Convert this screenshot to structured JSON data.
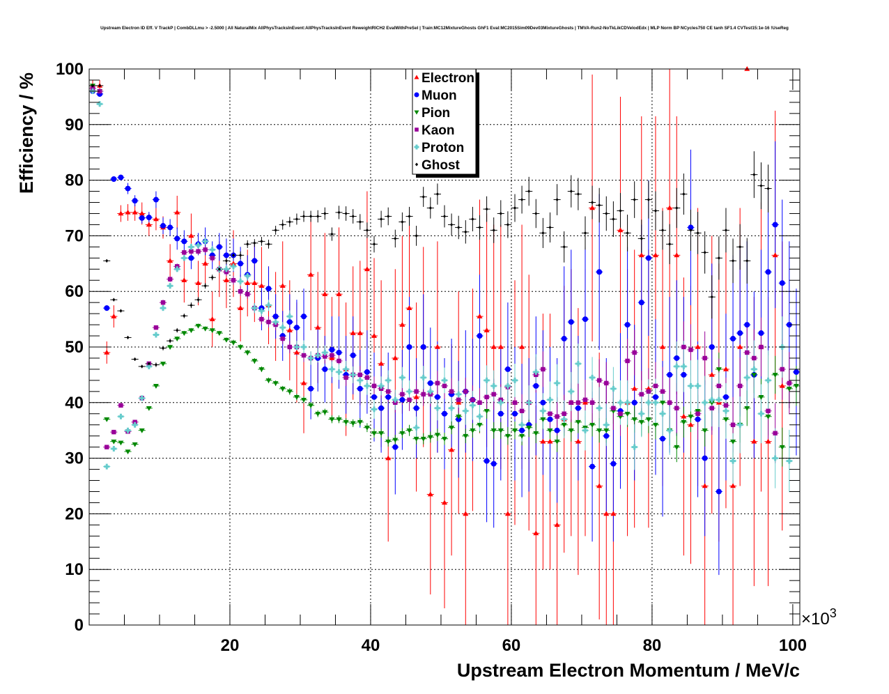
{
  "chart_data": {
    "type": "scatter",
    "title": "Upstream Electron ID Eff. V TrackP | CombDLLmu > -2.5000 | All NaturalMix AllPhysTracksInEvent:AllPhysTracksInEvent ReweightRICH2 EvalWithPreSel | Train:MC12MixtureGhosts GhF1 Eval:MC2015Sim09Dev03MixtureGhosts | TMVA-Run2-NoTkLikCDVelodEdx | MLP Norm BP NCycles750 CE tanh SF1.4 CVTest15:1e-16 !UseReg",
    "xlabel": "Upstream Electron Momentum / MeV/c",
    "ylabel": "Efficiency / %",
    "x_multiplier": "×10",
    "x_multiplier_exp": "3",
    "xlim": [
      0,
      101
    ],
    "ylim": [
      0,
      100
    ],
    "xticks": [
      "20",
      "40",
      "60",
      "80",
      "100"
    ],
    "yticks": [
      "0",
      "10",
      "20",
      "30",
      "40",
      "50",
      "60",
      "70",
      "80",
      "90",
      "100"
    ],
    "grid": true,
    "legend_position": "top-center",
    "x_start": 0.5,
    "bin_width": 1,
    "series": [
      {
        "name": "Electron",
        "color": "#ff0000",
        "marker": "triangle-up",
        "values": [
          97,
          97,
          49,
          55.5,
          74,
          74.2,
          74.2,
          74,
          72,
          73,
          71.5,
          65.5,
          74.2,
          62,
          70,
          61.5,
          65,
          55,
          64,
          62,
          65,
          57,
          61.5,
          61.5,
          61,
          57.5,
          55.5,
          61,
          53,
          49,
          43.5,
          63,
          53.5,
          59.5,
          48,
          59.5,
          46,
          52.5,
          52.5,
          64,
          52,
          47,
          30,
          48,
          54,
          57,
          41,
          50,
          23.5,
          50,
          22,
          31.5,
          40,
          20,
          40.5,
          55.5,
          53,
          50,
          50,
          20,
          40,
          50,
          40,
          16.5,
          33,
          33,
          18,
          37,
          40,
          33,
          40,
          75,
          25,
          20,
          20,
          71,
          40,
          42.5,
          66.5,
          42.5,
          66.5,
          50,
          75,
          66.5,
          37.5,
          36,
          50,
          25,
          45,
          40,
          46,
          25,
          50,
          100,
          33,
          50,
          33,
          66.5,
          43
        ],
        "err": [
          1,
          1,
          2,
          2,
          1.5,
          1.5,
          1.5,
          2,
          2,
          2,
          2,
          3,
          3,
          4,
          4,
          4,
          4,
          5,
          5,
          5,
          6,
          6,
          6,
          7,
          7,
          7,
          8,
          8,
          9,
          9,
          9,
          10,
          10,
          11,
          11,
          12,
          12,
          12,
          13,
          14,
          14,
          15,
          15,
          16,
          16,
          17,
          17,
          18,
          18,
          19,
          19,
          19,
          20,
          20,
          20,
          21,
          21,
          22,
          22,
          22,
          22,
          22,
          23,
          23,
          23,
          23,
          23,
          24,
          24,
          24,
          24,
          24,
          24,
          24,
          24,
          24,
          24,
          25,
          25,
          25,
          25,
          25,
          25,
          25,
          25,
          25,
          25,
          25,
          25,
          25,
          25,
          25,
          25,
          0,
          26,
          26,
          26,
          26,
          26
        ]
      },
      {
        "name": "Muon",
        "color": "#0000ff",
        "marker": "circle",
        "values": [
          96,
          95.5,
          57,
          80.2,
          80.5,
          78.5,
          76.3,
          73.2,
          73.3,
          76.5,
          71.8,
          71.5,
          69.5,
          69,
          66,
          68.5,
          69,
          66.5,
          68,
          66.5,
          66.5,
          65,
          63,
          65.5,
          57,
          60.5,
          55.5,
          52,
          54.5,
          53.5,
          55.5,
          42.5,
          48,
          46,
          49.5,
          49,
          45,
          48.5,
          42.5,
          45.5,
          41,
          39,
          41,
          32,
          40.5,
          50,
          39,
          50,
          43.5,
          41,
          38,
          41.5,
          37,
          42,
          40.5,
          52,
          29.5,
          29,
          38,
          46,
          38,
          35,
          36,
          43,
          40,
          37,
          35,
          51.5,
          54.5,
          39,
          55,
          28.5,
          63.5,
          34,
          29,
          38.5,
          54,
          40,
          58,
          66,
          41,
          33.5,
          45,
          48,
          45,
          71.5,
          37,
          30,
          50,
          24,
          41,
          51.5,
          52.5,
          54,
          45,
          52.5,
          63.5,
          72,
          61.5,
          54,
          45.5
        ],
        "err": [
          0.5,
          0.5,
          0.5,
          0.5,
          0.5,
          1,
          1,
          1,
          1,
          1.5,
          1.5,
          1.5,
          2,
          2,
          2,
          2,
          2.5,
          2.5,
          2.5,
          3,
          3,
          3,
          3.5,
          3.5,
          4,
          4,
          4,
          4.5,
          5,
          5,
          5,
          5.5,
          6,
          6,
          6,
          6.5,
          7,
          7,
          7,
          7.5,
          8,
          8,
          8,
          8.5,
          9,
          9,
          9,
          9.5,
          10,
          10,
          10,
          10,
          10.5,
          11,
          11,
          11,
          11,
          11.5,
          12,
          12,
          12,
          12,
          12,
          12.5,
          13,
          13,
          13,
          13,
          13,
          13,
          13,
          13.5,
          14,
          14,
          14,
          14,
          14,
          14,
          14,
          14,
          14,
          14,
          14,
          14,
          14,
          14,
          14,
          14,
          15,
          15,
          15,
          15,
          15,
          15,
          15,
          15,
          15,
          15,
          15,
          15,
          15
        ]
      },
      {
        "name": "Pion",
        "color": "#008800",
        "marker": "triangle-down",
        "values": [
          97,
          96,
          37,
          33,
          32.8,
          31.2,
          32.5,
          35,
          39,
          43,
          47,
          50,
          51.5,
          52.5,
          53,
          53.8,
          53.3,
          53,
          52.5,
          51.3,
          50.8,
          50,
          49,
          47.5,
          46,
          44,
          43.5,
          42.5,
          42,
          41,
          40.5,
          39.5,
          38,
          38.3,
          37,
          37,
          36.5,
          36.3,
          36.5,
          35.5,
          34.5,
          34.5,
          33,
          33.3,
          34.5,
          35,
          33.5,
          33.5,
          33.8,
          34.2,
          33.5,
          35.5,
          37.5,
          34,
          35,
          36,
          38.5,
          35,
          35,
          34,
          35,
          34,
          35.5,
          34.5,
          37,
          35,
          33,
          36,
          35,
          36.5,
          35.5,
          36,
          35,
          35,
          38.5,
          37.5,
          38,
          37,
          36.5,
          37,
          36,
          40,
          35,
          32,
          36.5,
          37.5,
          38.5,
          35,
          40,
          46,
          37,
          33,
          36,
          39,
          45,
          41,
          37.5,
          45,
          32,
          42.5,
          43
        ],
        "err": [
          0.3,
          0.3,
          0.3,
          0.3,
          0.3,
          0.3,
          0.3,
          0.3,
          0.3,
          0.3,
          0.3,
          0.4,
          0.4,
          0.4,
          0.4,
          0.4,
          0.4,
          0.4,
          0.4,
          0.4,
          0.5,
          0.5,
          0.5,
          0.5,
          0.5,
          0.5,
          0.5,
          0.5,
          0.6,
          0.6,
          0.6,
          0.6,
          0.6,
          0.6,
          0.7,
          0.7,
          0.7,
          0.7,
          0.7,
          0.8,
          0.8,
          0.8,
          0.9,
          0.9,
          0.9,
          1,
          1,
          1,
          1,
          1.1,
          1.1,
          1.2,
          1.2,
          1.3,
          1.3,
          1.4,
          1.4,
          1.5,
          1.5,
          1.6,
          1.6,
          1.7,
          1.7,
          1.8,
          1.8,
          1.9,
          1.9,
          2,
          2,
          2,
          2.1,
          2.1,
          2.2,
          2.2,
          2.3,
          2.3,
          2.4,
          2.4,
          2.5,
          2.5,
          2.6,
          2.6,
          2.7,
          2.7,
          2.8,
          2.8,
          2.9,
          2.9,
          3,
          3,
          3.1,
          3.1,
          3.2,
          3.2,
          3.3,
          3.3,
          3.4,
          3.4,
          3.5,
          3.5,
          3.6
        ]
      },
      {
        "name": "Kaon",
        "color": "#990099",
        "marker": "square",
        "values": [
          96.5,
          96,
          32,
          34.7,
          39.5,
          34.8,
          36.5,
          40.8,
          47,
          53.5,
          58,
          62.2,
          64.5,
          67,
          67.2,
          67.2,
          67.5,
          66,
          64,
          63.5,
          62,
          60,
          59.5,
          57,
          55,
          54.5,
          54,
          51.5,
          50,
          50,
          48.5,
          48,
          48.5,
          48.3,
          48.5,
          47.5,
          44.5,
          45,
          45,
          44.5,
          43,
          42.5,
          42,
          40,
          41.5,
          40.5,
          42,
          41.5,
          41.5,
          43.5,
          43,
          42,
          40.5,
          42,
          40.5,
          40,
          41,
          41.5,
          40.5,
          42.8,
          40,
          38.5,
          40,
          45,
          46,
          38,
          37.5,
          38,
          40,
          40,
          40.5,
          40,
          44,
          43.5,
          39,
          38,
          47.5,
          49,
          41.5,
          42,
          43,
          42,
          40,
          39,
          50,
          49.5,
          38,
          48,
          39,
          43,
          39.5,
          36,
          43,
          49,
          48,
          50,
          38.5,
          34.5,
          46,
          43.5
        ],
        "err": [
          0.4,
          0.4,
          0.4,
          0.4,
          0.4,
          0.4,
          0.4,
          0.4,
          0.4,
          0.4,
          0.5,
          0.5,
          0.5,
          0.5,
          0.6,
          0.6,
          0.6,
          0.7,
          0.7,
          0.7,
          0.8,
          0.8,
          0.8,
          0.9,
          0.9,
          1,
          1,
          1,
          1.1,
          1.1,
          1.2,
          1.2,
          1.3,
          1.3,
          1.4,
          1.4,
          1.5,
          1.5,
          1.6,
          1.6,
          1.7,
          1.7,
          1.8,
          1.8,
          1.9,
          2,
          2,
          2.1,
          2.2,
          2.2,
          2.3,
          2.4,
          2.4,
          2.5,
          2.6,
          2.6,
          2.7,
          2.8,
          2.8,
          2.9,
          3,
          3,
          3.1,
          3.2,
          3.2,
          3.3,
          3.4,
          3.4,
          3.5,
          3.6,
          3.6,
          3.7,
          3.8,
          3.8,
          3.9,
          4,
          4,
          4.1,
          4.2,
          4.2,
          4.3,
          4.4,
          4.4,
          4.5,
          4.6,
          4.6,
          4.7,
          4.8,
          4.8,
          4.9,
          5,
          5,
          5.1,
          5.2,
          5.2,
          5.3,
          5.4,
          5.4,
          5.5,
          5.6
        ]
      },
      {
        "name": "Proton",
        "color": "#66cccc",
        "marker": "cross",
        "values": [
          96,
          93.7,
          28.5,
          31.7,
          37.5,
          35,
          36,
          40.8,
          46.5,
          52.2,
          57,
          61,
          64,
          66,
          68,
          68.3,
          69,
          67.5,
          64,
          64,
          64.5,
          61.8,
          62.8,
          57,
          56.5,
          57.5,
          54.5,
          53.5,
          55.5,
          50,
          50,
          48,
          48.5,
          49,
          46,
          45.5,
          46,
          45,
          44,
          43,
          38.8,
          43,
          44,
          40.5,
          44.5,
          42,
          35.5,
          44.5,
          42,
          39,
          44,
          39,
          41.5,
          38.5,
          39.5,
          37.5,
          44,
          43,
          40,
          43,
          44,
          36,
          40,
          45.5,
          38.5,
          40.5,
          43.5,
          37,
          42,
          47,
          35,
          44.5,
          39,
          36,
          42.5,
          40,
          40,
          32,
          38,
          40,
          40,
          38,
          35,
          46.5,
          46.5,
          43,
          43,
          40,
          40.5,
          40.5,
          38.5,
          29.5,
          36,
          44.5,
          46,
          38,
          44,
          30,
          50,
          29.5
        ],
        "err": [
          0.4,
          0.4,
          0.4,
          0.4,
          0.4,
          0.4,
          0.4,
          0.4,
          0.4,
          0.4,
          0.5,
          0.5,
          0.5,
          0.5,
          0.6,
          0.6,
          0.6,
          0.7,
          0.7,
          0.7,
          0.8,
          0.8,
          0.8,
          0.9,
          0.9,
          1,
          1,
          1,
          1.1,
          1.1,
          1.2,
          1.2,
          1.3,
          1.3,
          1.4,
          1.4,
          1.5,
          1.5,
          1.6,
          1.6,
          1.7,
          1.7,
          1.8,
          1.8,
          1.9,
          2,
          2,
          2.1,
          2.2,
          2.2,
          2.3,
          2.4,
          2.4,
          2.5,
          2.6,
          2.6,
          2.7,
          2.8,
          2.8,
          2.9,
          3,
          3,
          3.1,
          3.2,
          3.2,
          3.3,
          3.4,
          3.4,
          3.5,
          3.6,
          3.6,
          3.7,
          3.8,
          3.8,
          3.9,
          4,
          4,
          4.1,
          4.2,
          4.2,
          4.3,
          4.4,
          4.4,
          4.5,
          4.6,
          4.6,
          4.7,
          4.8,
          4.8,
          4.9,
          5,
          5,
          5.1,
          5.2,
          5.2,
          5.3,
          5.4,
          5.4,
          5.5,
          5.6
        ]
      },
      {
        "name": "Ghost",
        "color": "#000000",
        "marker": "diamond",
        "values": [
          97,
          97,
          65.5,
          58.5,
          56.5,
          51.7,
          47.8,
          46.5,
          47,
          46.8,
          49.8,
          51.1,
          53,
          55.6,
          57.5,
          58.5,
          61,
          62.5,
          64,
          65.5,
          66.5,
          66.5,
          68.5,
          68.7,
          69,
          68.5,
          71,
          72,
          72.5,
          73,
          73.5,
          73.5,
          73.5,
          74,
          70.3,
          74.2,
          74,
          73.5,
          72.5,
          71,
          68.5,
          73,
          73.5,
          69.5,
          72.5,
          73.5,
          70,
          77,
          75,
          77.5,
          73.5,
          72,
          71.5,
          70.7,
          73,
          71.5,
          74.8,
          71,
          74,
          72,
          75,
          76.5,
          78,
          74,
          70.5,
          71.5,
          76.5,
          68,
          78,
          77.5,
          70.5,
          76,
          75.5,
          74,
          73,
          74.5,
          70.5,
          76.5,
          69.5,
          76.5,
          74.5,
          71,
          68.5,
          75,
          77.5,
          71,
          70.5,
          67,
          59,
          66,
          71,
          65.5,
          68,
          65.5,
          81,
          79,
          78.5
        ],
        "err": [
          0.3,
          0.3,
          0.3,
          0.3,
          0.3,
          0.3,
          0.3,
          0.3,
          0.3,
          0.4,
          0.4,
          0.4,
          0.4,
          0.4,
          0.5,
          0.5,
          0.5,
          0.5,
          0.6,
          0.6,
          0.6,
          0.7,
          0.7,
          0.7,
          0.8,
          0.8,
          0.8,
          0.9,
          0.9,
          1,
          1,
          1,
          1.1,
          1.1,
          1.2,
          1.2,
          1.3,
          1.3,
          1.4,
          1.4,
          1.5,
          1.5,
          1.6,
          1.6,
          1.7,
          1.7,
          1.8,
          1.8,
          1.9,
          1.9,
          2,
          2,
          2.1,
          2.1,
          2.2,
          2.2,
          2.3,
          2.3,
          2.4,
          2.4,
          2.5,
          2.5,
          2.6,
          2.6,
          2.7,
          2.7,
          2.8,
          2.8,
          2.9,
          2.9,
          3,
          3,
          3.1,
          3.1,
          3.2,
          3.2,
          3.3,
          3.3,
          3.4,
          3.4,
          3.5,
          3.5,
          3.6,
          3.6,
          3.7,
          3.7,
          3.8,
          3.8,
          3.9,
          3.9,
          4,
          4,
          4.1,
          4.1,
          4.2,
          4.2,
          4.3
        ]
      }
    ]
  }
}
